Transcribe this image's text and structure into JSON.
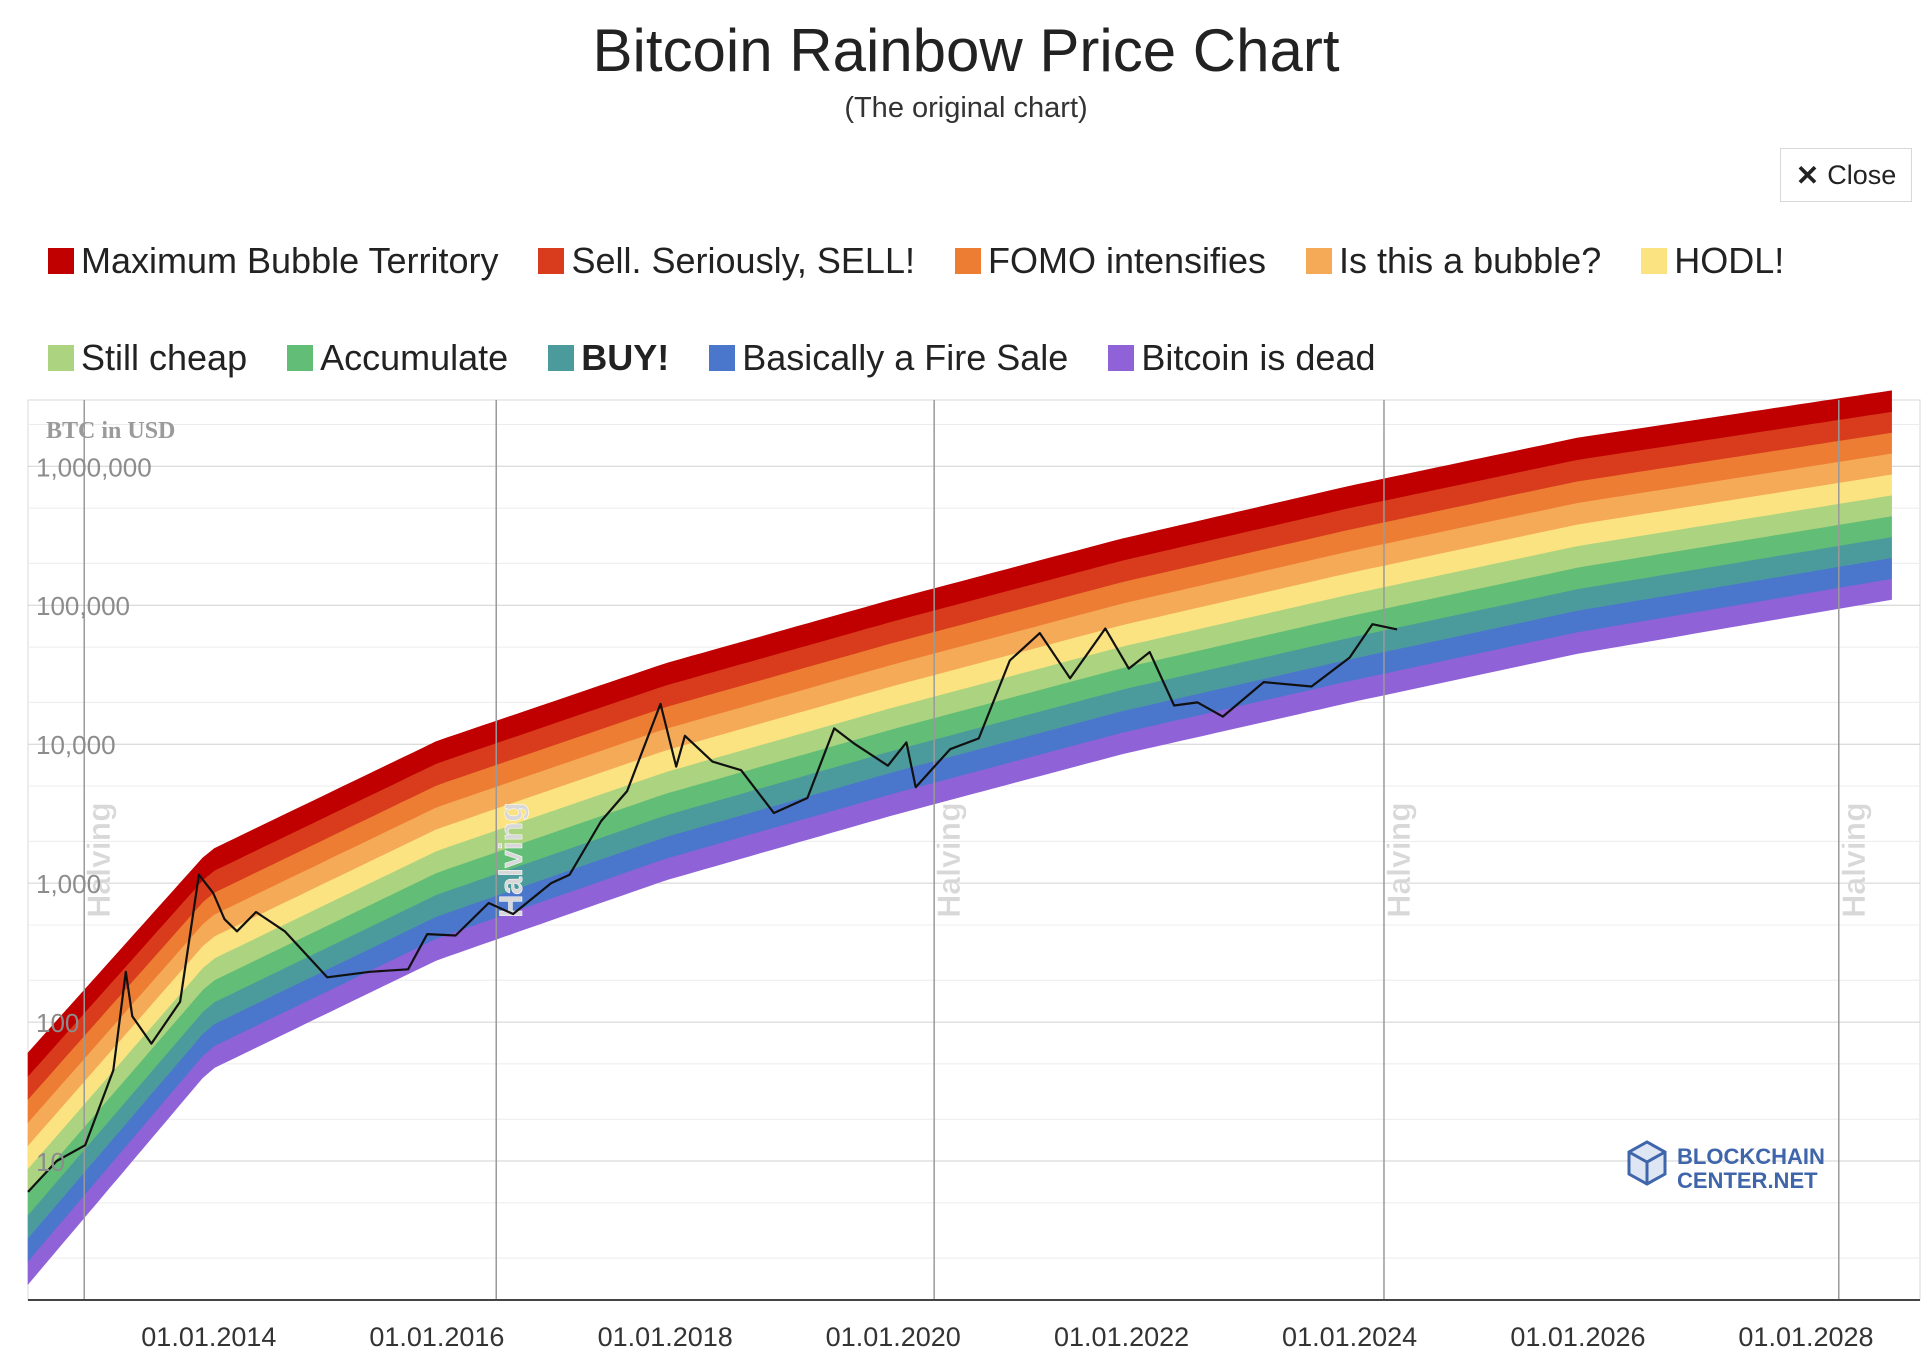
{
  "header": {
    "title": "Bitcoin Rainbow Price Chart",
    "subtitle": "(The original chart)",
    "close_icon": "close-x-icon",
    "close_label": "Close"
  },
  "legend": [
    {
      "label": "Maximum Bubble Territory",
      "color": "#c00000",
      "bold": false
    },
    {
      "label": "Sell. Seriously, SELL!",
      "color": "#d83c1c",
      "bold": false
    },
    {
      "label": "FOMO intensifies",
      "color": "#ee7d34",
      "bold": false
    },
    {
      "label": "Is this a bubble?",
      "color": "#f5aa58",
      "bold": false
    },
    {
      "label": "HODL!",
      "color": "#fce381",
      "bold": false
    },
    {
      "label": "Still cheap",
      "color": "#acd37f",
      "bold": false
    },
    {
      "label": "Accumulate",
      "color": "#62bd77",
      "bold": false
    },
    {
      "label": "BUY!",
      "color": "#4c9b9c",
      "bold": true
    },
    {
      "label": "Basically a Fire Sale",
      "color": "#4a76cc",
      "bold": false
    },
    {
      "label": "Bitcoin is dead",
      "color": "#8f62d8",
      "bold": false
    }
  ],
  "watermark": {
    "line1": "BLOCKCHAIN",
    "line2": "CENTER.NET"
  },
  "chart_data": {
    "type": "line",
    "title": "Bitcoin Rainbow Price Chart",
    "subtitle": "(The original chart)",
    "ylabel": "BTC in USD",
    "yscale": "log",
    "ylim": [
      1,
      3000000
    ],
    "xlim": [
      "2012-06-01",
      "2028-12-31"
    ],
    "y_ticks": [
      {
        "value": 10,
        "label": "10"
      },
      {
        "value": 100,
        "label": "100"
      },
      {
        "value": 1000,
        "label": "1,000"
      },
      {
        "value": 10000,
        "label": "10,000"
      },
      {
        "value": 100000,
        "label": "100,000"
      },
      {
        "value": 1000000,
        "label": "1,000,000"
      }
    ],
    "x_ticks": [
      "01.01.2014",
      "01.01.2016",
      "01.01.2018",
      "01.01.2020",
      "01.01.2022",
      "01.01.2024",
      "01.01.2026",
      "01.01.2028"
    ],
    "halvings": [
      {
        "date": "2012-11-28",
        "label": "Halving"
      },
      {
        "date": "2016-07-09",
        "label": "Halving"
      },
      {
        "date": "2020-05-11",
        "label": "Halving"
      },
      {
        "date": "2024-04-20",
        "label": "Halving"
      },
      {
        "date": "2028-04-15",
        "label": "Halving"
      }
    ],
    "bands": [
      {
        "name": "Bitcoin is dead",
        "color": "#8f62d8",
        "lower": [
          [
            "2012-06-01",
            1.3
          ],
          [
            "2014-01-01",
            45
          ],
          [
            "2016-01-01",
            280
          ],
          [
            "2018-01-01",
            1050
          ],
          [
            "2020-01-01",
            3100
          ],
          [
            "2022-01-01",
            8500
          ],
          [
            "2024-01-01",
            20000
          ],
          [
            "2026-01-01",
            45000
          ],
          [
            "2028-10-01",
            110000
          ]
        ]
      },
      {
        "name": "Basically a Fire Sale",
        "color": "#4a76cc"
      },
      {
        "name": "BUY!",
        "color": "#4c9b9c"
      },
      {
        "name": "Accumulate",
        "color": "#62bd77"
      },
      {
        "name": "Still cheap",
        "color": "#acd37f"
      },
      {
        "name": "HODL!",
        "color": "#fce381"
      },
      {
        "name": "Is this a bubble?",
        "color": "#f5aa58"
      },
      {
        "name": "FOMO intensifies",
        "color": "#ee7d34"
      },
      {
        "name": "Sell. Seriously, SELL!",
        "color": "#d83c1c"
      },
      {
        "name": "Maximum Bubble Territory",
        "color": "#c00000",
        "upper": [
          [
            "2012-06-01",
            60
          ],
          [
            "2014-01-01",
            1700
          ],
          [
            "2016-01-01",
            10500
          ],
          [
            "2018-01-01",
            38000
          ],
          [
            "2020-01-01",
            110000
          ],
          [
            "2022-01-01",
            300000
          ],
          [
            "2024-01-01",
            720000
          ],
          [
            "2026-01-01",
            1600000
          ],
          [
            "2028-10-01",
            3500000
          ]
        ]
      }
    ],
    "series": [
      {
        "color": "#111111",
        "points": [
          [
            "2012-06-01",
            6
          ],
          [
            "2012-09-01",
            10
          ],
          [
            "2012-12-01",
            13
          ],
          [
            "2013-03-01",
            45
          ],
          [
            "2013-04-10",
            230
          ],
          [
            "2013-05-01",
            110
          ],
          [
            "2013-07-01",
            70
          ],
          [
            "2013-10-01",
            140
          ],
          [
            "2013-11-30",
            1150
          ],
          [
            "2014-01-15",
            850
          ],
          [
            "2014-02-20",
            550
          ],
          [
            "2014-04-01",
            450
          ],
          [
            "2014-06-01",
            620
          ],
          [
            "2014-09-01",
            450
          ],
          [
            "2015-01-15",
            210
          ],
          [
            "2015-06-01",
            230
          ],
          [
            "2015-10-01",
            240
          ],
          [
            "2015-12-01",
            430
          ],
          [
            "2016-03-01",
            420
          ],
          [
            "2016-06-15",
            720
          ],
          [
            "2016-09-01",
            600
          ],
          [
            "2017-01-01",
            1000
          ],
          [
            "2017-03-01",
            1150
          ],
          [
            "2017-06-10",
            2800
          ],
          [
            "2017-09-01",
            4600
          ],
          [
            "2017-12-17",
            19500
          ],
          [
            "2018-02-05",
            6900
          ],
          [
            "2018-03-05",
            11500
          ],
          [
            "2018-06-01",
            7500
          ],
          [
            "2018-09-01",
            6500
          ],
          [
            "2018-12-15",
            3200
          ],
          [
            "2019-04-01",
            4100
          ],
          [
            "2019-06-26",
            13000
          ],
          [
            "2019-09-01",
            10000
          ],
          [
            "2019-12-15",
            7000
          ],
          [
            "2020-02-12",
            10300
          ],
          [
            "2020-03-13",
            4900
          ],
          [
            "2020-07-01",
            9200
          ],
          [
            "2020-10-01",
            11000
          ],
          [
            "2021-01-08",
            40000
          ],
          [
            "2021-04-14",
            63000
          ],
          [
            "2021-07-20",
            29800
          ],
          [
            "2021-11-10",
            68000
          ],
          [
            "2022-01-24",
            35000
          ],
          [
            "2022-04-01",
            46000
          ],
          [
            "2022-06-18",
            19000
          ],
          [
            "2022-09-01",
            20000
          ],
          [
            "2022-11-21",
            15800
          ],
          [
            "2023-04-01",
            28000
          ],
          [
            "2023-09-01",
            26000
          ],
          [
            "2024-01-01",
            42000
          ],
          [
            "2024-03-14",
            73000
          ],
          [
            "2024-06-01",
            67000
          ]
        ]
      }
    ],
    "annotations": [
      "Halving"
    ]
  }
}
